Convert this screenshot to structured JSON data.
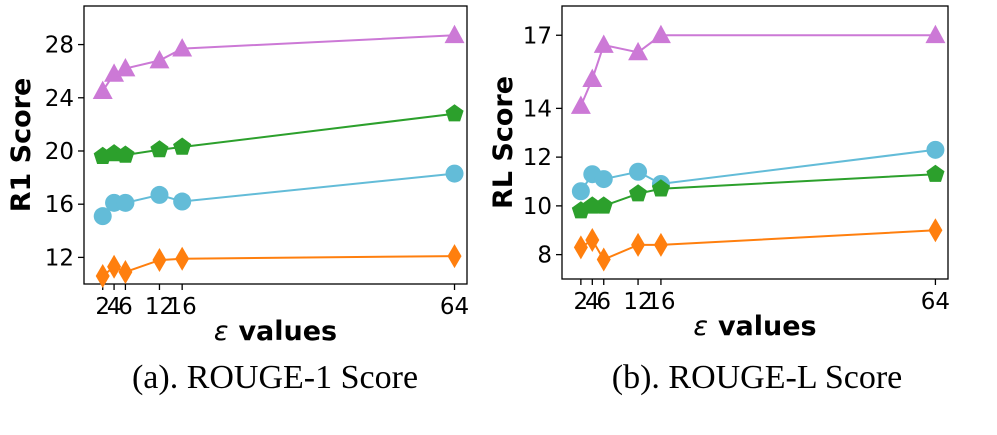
{
  "chart_data": [
    {
      "type": "line",
      "title": "",
      "caption": "(a). ROUGE-1 Score",
      "xlabel_symbol": "ε",
      "xlabel_text": "values",
      "ylabel": "R1 Score",
      "xlim": [
        -1.3,
        66.2
      ],
      "ylim": [
        10.0,
        30.9
      ],
      "xticks": [
        2,
        4,
        6,
        12,
        16,
        64
      ],
      "yticks": [
        12,
        16,
        20,
        24,
        28
      ],
      "x": [
        2,
        4,
        6,
        12,
        16,
        64
      ],
      "series": [
        {
          "name": "purple-triangle",
          "color": "#cc79d6",
          "marker": "triangle",
          "values": [
            24.5,
            25.8,
            26.2,
            26.8,
            27.7,
            28.7
          ]
        },
        {
          "name": "green-pentagon",
          "color": "#2ca02c",
          "marker": "pentagon",
          "values": [
            19.6,
            19.8,
            19.7,
            20.1,
            20.3,
            22.8
          ]
        },
        {
          "name": "blue-circle",
          "color": "#63bcd8",
          "marker": "circle",
          "values": [
            15.1,
            16.1,
            16.1,
            16.7,
            16.2,
            18.3
          ]
        },
        {
          "name": "orange-diamond",
          "color": "#ff7f0e",
          "marker": "diamond",
          "values": [
            10.6,
            11.3,
            10.9,
            11.8,
            11.9,
            12.1
          ]
        }
      ]
    },
    {
      "type": "line",
      "title": "",
      "caption": "(b). ROUGE-L Score",
      "xlabel_symbol": "ε",
      "xlabel_text": "values",
      "ylabel": "RL Score",
      "xlim": [
        -1.3,
        66.2
      ],
      "ylim": [
        7.0,
        18.2
      ],
      "xticks": [
        2,
        4,
        6,
        12,
        16,
        64
      ],
      "yticks": [
        8,
        10,
        12,
        14,
        17
      ],
      "x": [
        2,
        4,
        6,
        12,
        16,
        64
      ],
      "series": [
        {
          "name": "purple-triangle",
          "color": "#cc79d6",
          "marker": "triangle",
          "values": [
            14.1,
            15.2,
            16.6,
            16.3,
            17.0,
            17.0
          ]
        },
        {
          "name": "blue-circle",
          "color": "#63bcd8",
          "marker": "circle",
          "values": [
            10.6,
            11.3,
            11.1,
            11.4,
            10.9,
            12.3
          ]
        },
        {
          "name": "green-pentagon",
          "color": "#2ca02c",
          "marker": "pentagon",
          "values": [
            9.8,
            10.0,
            10.0,
            10.5,
            10.7,
            11.3
          ]
        },
        {
          "name": "orange-diamond",
          "color": "#ff7f0e",
          "marker": "diamond",
          "values": [
            8.3,
            8.6,
            7.8,
            8.4,
            8.4,
            9.0
          ]
        }
      ]
    }
  ]
}
